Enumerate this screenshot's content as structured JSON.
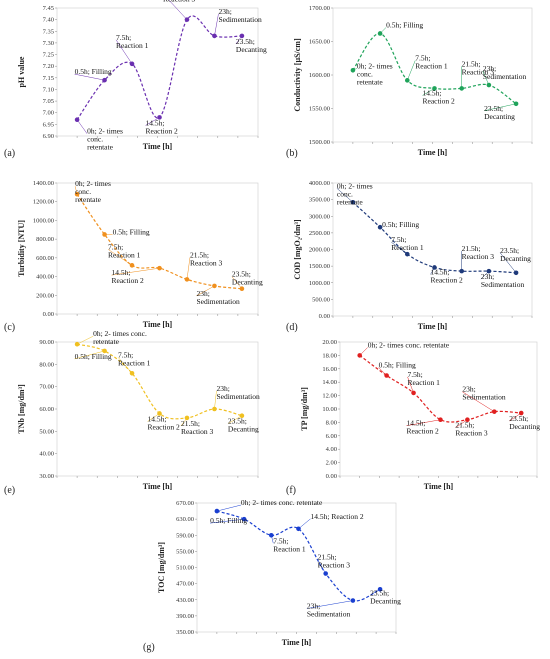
{
  "chart_data": [
    {
      "type": "line",
      "panel_label": "(a)",
      "xlabel": "Time [h]",
      "ylabel": "pH value",
      "color": "#6a2fb0",
      "ylim": [
        6.9,
        7.45
      ],
      "yticks": [
        "6.90",
        "6.95",
        "7.00",
        "7.05",
        "7.10",
        "7.15",
        "7.20",
        "7.25",
        "7.30",
        "7.35",
        "7.40",
        "7.45"
      ],
      "x": [
        0,
        0.5,
        7.5,
        14.5,
        21.5,
        23,
        23.5
      ],
      "y": [
        6.97,
        7.14,
        7.21,
        6.98,
        7.4,
        7.33,
        7.33
      ],
      "annotations": [
        "0h; 2- times\nconc.\nretentate",
        "0.5h; Filling",
        "7.5h;\nReaction 1",
        "14.5h;\nReaction 2",
        "21.5h;\nReaction 3",
        "23h;\nSedimentation",
        "23.5h;\nDecanting"
      ]
    },
    {
      "type": "line",
      "panel_label": "(b)",
      "xlabel": "Time [h]",
      "ylabel": "Conductivity [µS/cm]",
      "color": "#1fa35a",
      "ylim": [
        1500,
        1700
      ],
      "yticks": [
        "1500.00",
        "1550.00",
        "1600.00",
        "1650.00",
        "1700.00"
      ],
      "x": [
        0,
        0.5,
        7.5,
        14.5,
        21.5,
        23,
        23.5
      ],
      "y": [
        1607,
        1662,
        1592,
        1580,
        1580,
        1585,
        1557
      ],
      "annotations": [
        "0h; 2- times\nconc.\nretentate",
        "0.5h; Filling",
        "7.5h;\nReaction 1",
        "14.5h;\nReaction 2",
        "21.5h;\nReaction 3",
        "23h;\nSedimentation",
        "23.5h;\nDecanting"
      ]
    },
    {
      "type": "line",
      "panel_label": "(c)",
      "xlabel": "Time [h]",
      "ylabel": "Turbidity [NTU]",
      "color": "#f0901e",
      "ylim": [
        0,
        1400
      ],
      "yticks": [
        "0.00",
        "200.00",
        "400.00",
        "600.00",
        "800.00",
        "1000.00",
        "1200.00",
        "1400.00"
      ],
      "x": [
        0,
        0.5,
        7.5,
        14.5,
        21.5,
        23,
        23.5
      ],
      "y": [
        1280,
        850,
        520,
        490,
        370,
        300,
        270
      ],
      "annotations": [
        "0h; 2- times\nconc.\nretentate",
        "0.5h; Filling",
        "7.5h;\nReaction 1",
        "14.5h;\nReaction 2",
        "21.5h;\nReaction 3",
        "23h;\nSedimentation",
        "23.5h;\nDecanting"
      ]
    },
    {
      "type": "line",
      "panel_label": "(d)",
      "xlabel": "Time [h]",
      "ylabel": "COD [mgO₂/dm³]",
      "color": "#1f3a7a",
      "ylim": [
        0,
        4000
      ],
      "yticks": [
        "0.00",
        "500.00",
        "1000.00",
        "1500.00",
        "2000.00",
        "2500.00",
        "3000.00",
        "3500.00",
        "4000.00"
      ],
      "x": [
        0,
        0.5,
        7.5,
        14.5,
        21.5,
        23,
        23.5
      ],
      "y": [
        3420,
        2670,
        1860,
        1460,
        1350,
        1350,
        1300
      ],
      "annotations": [
        "0h; 2- times\nconc.\nretentate",
        "0.5h; Filling",
        "7.5h;\nReaction 1",
        "14.5h;\nReaction 2",
        "21.5h;\nReaction 3",
        "23h;\nSedimentation",
        "23.5h;\nDecanting"
      ]
    },
    {
      "type": "line",
      "panel_label": "(e)",
      "xlabel": "Time [h]",
      "ylabel": "TNb [mg/dm³]",
      "color": "#f0c020",
      "ylim": [
        30,
        90
      ],
      "yticks": [
        "30.00",
        "40.00",
        "50.00",
        "60.00",
        "70.00",
        "80.00",
        "90.00"
      ],
      "x": [
        0,
        0.5,
        7.5,
        14.5,
        21.5,
        23,
        23.5
      ],
      "y": [
        89,
        86,
        76,
        58,
        56,
        60,
        57
      ],
      "annotations": [
        "0h; 2- times conc.\nretentate",
        "0.5h; Filling",
        "7.5h;\nReaction 1",
        "14.5h;\nReaction 2",
        "21.5h;\nReaction 3",
        "23h;\nSedimentation",
        "23.5h;\nDecanting"
      ]
    },
    {
      "type": "line",
      "panel_label": "(f)",
      "xlabel": "Time [h]",
      "ylabel": "TP [mg/dm³]",
      "color": "#e02020",
      "ylim": [
        0,
        20
      ],
      "yticks": [
        "0.00",
        "2.00",
        "4.00",
        "6.00",
        "8.00",
        "10.00",
        "12.00",
        "14.00",
        "16.00",
        "18.00",
        "20.00"
      ],
      "x": [
        0,
        0.5,
        7.5,
        14.5,
        21.5,
        23,
        23.5
      ],
      "y": [
        18.0,
        15.0,
        12.4,
        8.4,
        8.4,
        9.6,
        9.4
      ],
      "annotations": [
        "0h; 2- times conc. retentate",
        "0.5h; Filling",
        "7.5h;\nReaction 1",
        "14.5h;\nReaction 2",
        "21.5h;\nReaction 3",
        "23h;\nSedimentation",
        "23.5h;\nDecanting"
      ]
    },
    {
      "type": "line",
      "panel_label": "(g)",
      "xlabel": "Time [h]",
      "ylabel": "TOC [mg/dm³]",
      "color": "#1a3fd0",
      "ylim": [
        350,
        670
      ],
      "yticks": [
        "350.00",
        "390.00",
        "430.00",
        "470.00",
        "510.00",
        "550.00",
        "590.00",
        "630.00",
        "670.00"
      ],
      "x": [
        0,
        0.5,
        7.5,
        14.5,
        21.5,
        23,
        23.5
      ],
      "y": [
        650,
        630,
        590,
        606,
        495,
        428,
        456
      ],
      "annotations": [
        "0h; 2- times conc. retentate",
        "0.5h; Filling",
        "7.5h;\nReaction 1",
        "14.5h; Reaction 2",
        "21.5h;\nReaction 3",
        "23h;\nSedimentation",
        "23.5h;\nDecanting"
      ]
    }
  ]
}
